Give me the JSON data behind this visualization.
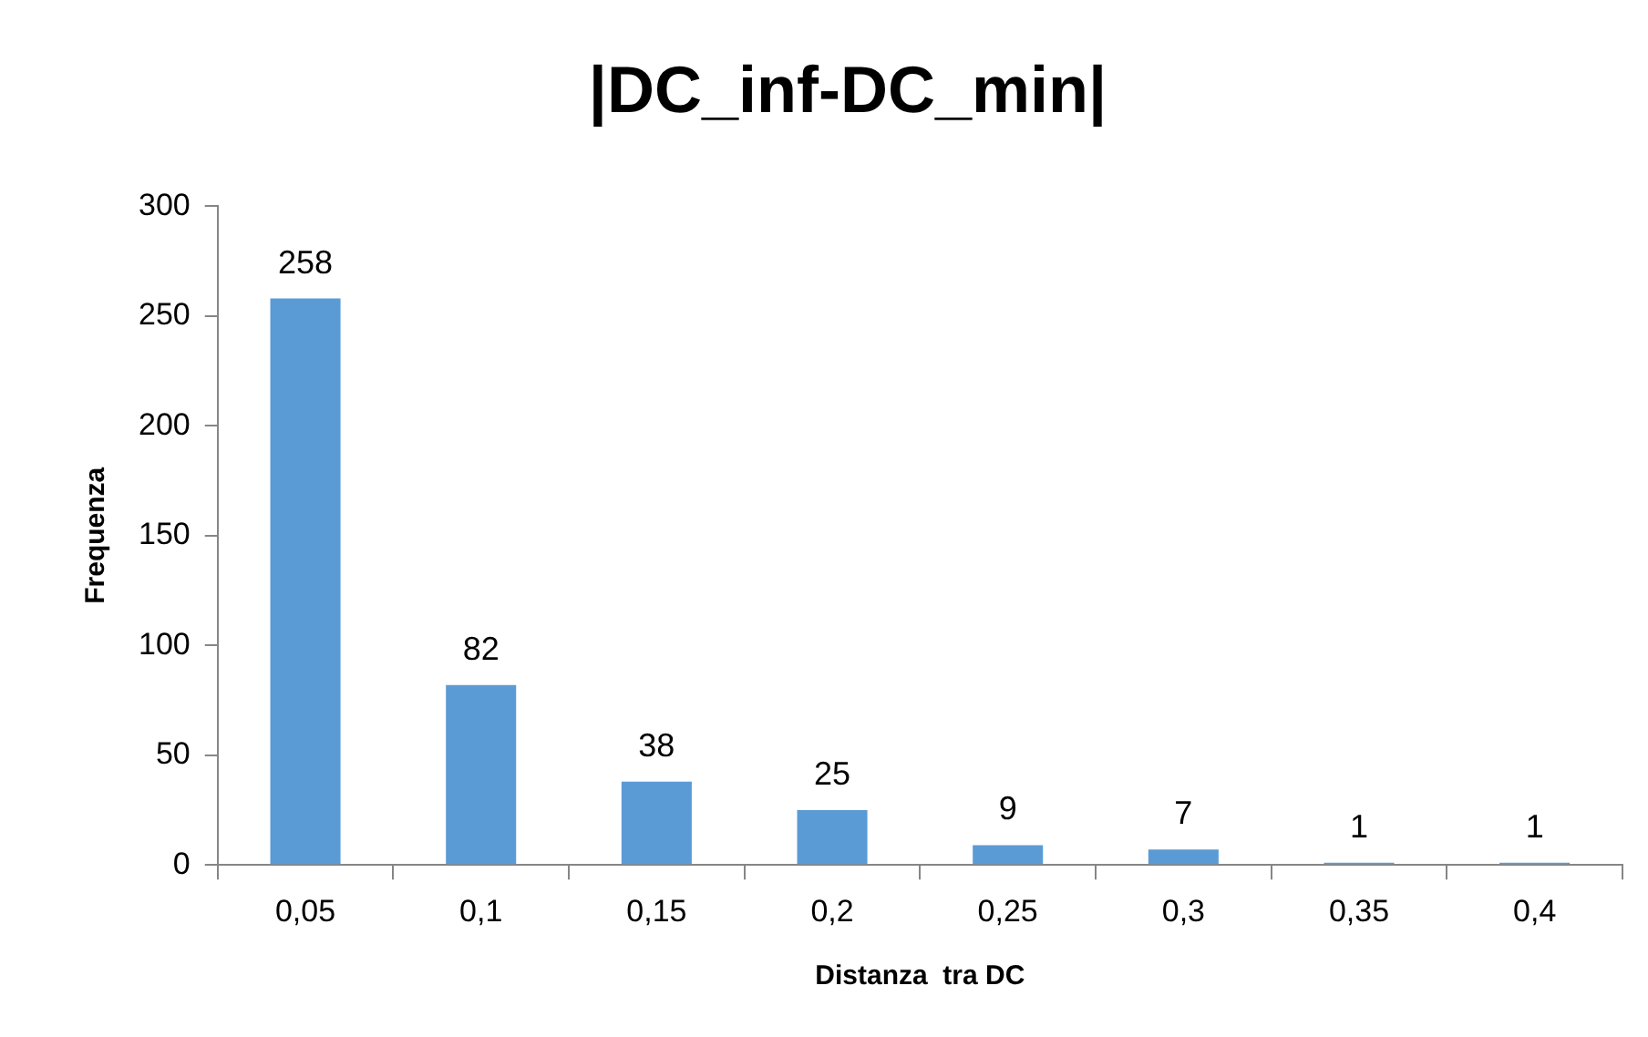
{
  "chart_data": {
    "type": "bar",
    "title": "|DC_inf-DC_min|",
    "xlabel": "Distanza  tra DC",
    "ylabel": "Frequenza",
    "categories": [
      "0,05",
      "0,1",
      "0,15",
      "0,2",
      "0,25",
      "0,3",
      "0,35",
      "0,4"
    ],
    "values": [
      258,
      82,
      38,
      25,
      9,
      7,
      1,
      1
    ],
    "color": "#5b9bd5",
    "ylim": [
      0,
      300
    ],
    "yticks": [
      0,
      50,
      100,
      150,
      200,
      250,
      300
    ],
    "grid": false,
    "legend": false,
    "data_labels": true
  }
}
